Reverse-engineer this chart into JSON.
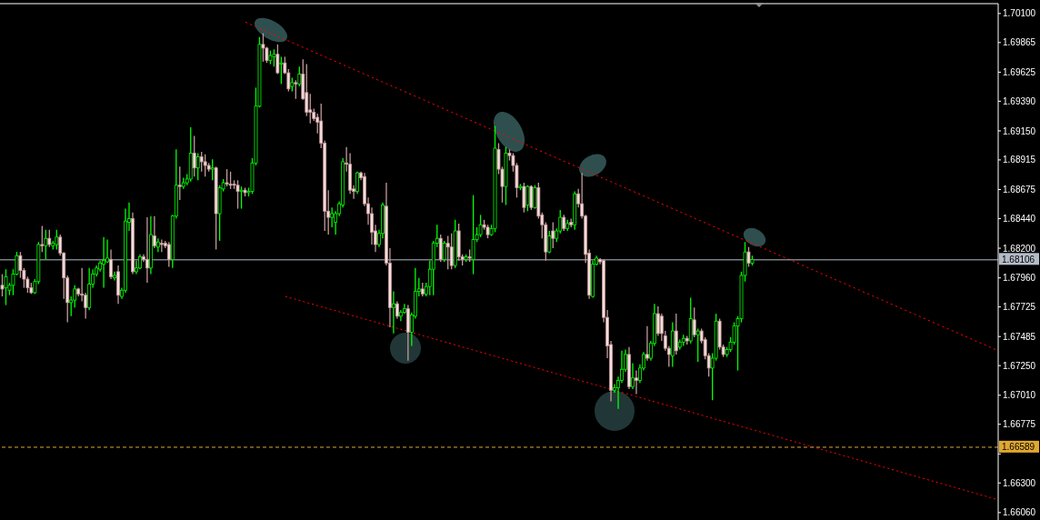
{
  "chart_data": {
    "type": "candlestick",
    "categories": [
      null,
      null,
      null,
      null,
      null,
      null,
      null,
      null,
      null,
      null,
      null,
      null,
      null,
      null,
      null,
      null,
      null,
      null,
      null,
      null,
      null,
      null,
      null,
      null,
      null,
      null,
      null,
      null,
      null,
      null,
      null,
      null,
      null,
      null,
      null,
      null,
      null,
      null,
      null,
      null,
      null,
      null,
      null,
      null,
      null,
      null,
      null,
      null,
      null,
      null,
      null,
      null,
      null,
      null,
      null,
      null,
      null,
      null,
      null,
      null,
      null,
      null,
      null,
      null,
      null,
      null,
      null,
      null,
      null,
      null,
      null,
      null,
      null,
      null,
      null,
      null,
      null,
      null,
      null,
      null,
      null,
      null,
      null,
      null,
      null,
      null,
      null,
      null,
      null,
      null,
      null,
      null,
      null,
      null,
      null,
      null,
      null,
      null,
      null,
      null,
      null,
      null,
      null,
      null,
      null,
      null,
      null,
      null,
      null,
      null,
      null,
      null,
      null,
      null,
      null,
      null,
      null,
      null,
      null,
      null,
      null,
      null,
      null,
      null,
      null,
      null,
      null,
      null,
      null,
      null,
      null,
      null,
      null,
      null,
      null,
      null,
      null,
      null,
      null,
      null,
      null,
      null,
      null,
      null,
      null,
      null,
      null,
      null,
      null,
      null,
      null,
      null,
      null,
      null,
      null,
      null,
      null,
      null,
      null,
      null,
      null,
      null,
      null,
      null,
      null,
      null,
      null,
      null,
      null,
      null,
      null,
      null,
      null,
      null,
      null,
      null,
      null,
      null,
      null,
      null,
      null,
      null,
      null,
      null,
      null,
      null,
      null,
      null,
      null,
      null,
      null,
      null,
      null,
      null,
      null,
      null,
      null,
      null,
      null,
      null,
      null,
      null,
      null,
      null,
      null,
      null,
      null,
      null,
      null,
      null,
      null,
      null,
      null,
      null,
      null,
      null,
      null,
      null,
      null,
      null,
      null,
      null,
      null,
      null,
      null,
      null,
      null,
      null,
      null,
      null,
      null,
      null,
      null,
      null,
      null,
      null,
      null,
      null,
      null,
      null,
      null,
      null,
      null,
      null,
      null,
      null,
      null,
      null,
      null,
      null,
      null,
      null,
      null,
      null,
      null,
      null,
      null,
      null,
      null,
      null,
      null,
      null,
      null,
      null,
      null,
      null,
      null,
      null,
      null,
      null,
      null,
      null,
      null,
      null,
      null
    ],
    "ohlc": [
      [
        1.679,
        1.6799,
        1.6781,
        1.6787
      ],
      [
        1.6788,
        1.6803,
        1.6774,
        1.6797
      ],
      [
        1.6786,
        1.6792,
        1.6782,
        1.679
      ],
      [
        1.679,
        1.6803,
        1.6782,
        1.6799
      ],
      [
        1.6799,
        1.6817,
        1.6798,
        1.6814
      ],
      [
        1.6814,
        1.6817,
        1.6796,
        1.6802
      ],
      [
        1.6802,
        1.6804,
        1.6788,
        1.6795
      ],
      [
        1.6795,
        1.6797,
        1.6784,
        1.6788
      ],
      [
        1.6788,
        1.6792,
        1.6783,
        1.6784
      ],
      [
        1.6784,
        1.6795,
        1.6783,
        1.6793
      ],
      [
        1.6793,
        1.6825,
        1.6791,
        1.6823
      ],
      [
        1.6823,
        1.6838,
        1.6817,
        1.6822
      ],
      [
        1.6822,
        1.6835,
        1.6811,
        1.6828
      ],
      [
        1.6828,
        1.6835,
        1.6821,
        1.6823
      ],
      [
        1.6822,
        1.6826,
        1.6819,
        1.6824
      ],
      [
        1.6823,
        1.6835,
        1.6819,
        1.6829
      ],
      [
        1.6829,
        1.6831,
        1.6814,
        1.6816
      ],
      [
        1.6816,
        1.6817,
        1.6779,
        1.6796
      ],
      [
        1.6796,
        1.6798,
        1.676,
        1.6776
      ],
      [
        1.6776,
        1.6781,
        1.6765,
        1.6778
      ],
      [
        1.6778,
        1.679,
        1.6772,
        1.6787
      ],
      [
        1.6787,
        1.6788,
        1.6781,
        1.6783
      ],
      [
        1.6783,
        1.6804,
        1.6777,
        1.6782
      ],
      [
        1.6782,
        1.6784,
        1.6763,
        1.6772
      ],
      [
        1.6772,
        1.6804,
        1.677,
        1.6791
      ],
      [
        1.6791,
        1.6803,
        1.6788,
        1.6799
      ],
      [
        1.6799,
        1.6806,
        1.6797,
        1.6804
      ],
      [
        1.6803,
        1.681,
        1.6801,
        1.6808
      ],
      [
        1.6807,
        1.6829,
        1.6788,
        1.681
      ],
      [
        1.6809,
        1.6827,
        1.6808,
        1.6812
      ],
      [
        1.6811,
        1.6819,
        1.6795,
        1.6797
      ],
      [
        1.6796,
        1.6801,
        1.6794,
        1.6798
      ],
      [
        1.6801,
        1.6806,
        1.6775,
        1.6782
      ],
      [
        1.6781,
        1.6788,
        1.6779,
        1.6786
      ],
      [
        1.6786,
        1.6852,
        1.6784,
        1.6842
      ],
      [
        1.6841,
        1.6857,
        1.6834,
        1.6844
      ],
      [
        1.6844,
        1.6849,
        1.6799,
        1.6801
      ],
      [
        1.6801,
        1.681,
        1.6799,
        1.6804
      ],
      [
        1.6804,
        1.6815,
        1.6803,
        1.6813
      ],
      [
        1.6813,
        1.6815,
        1.6809,
        1.6811
      ],
      [
        1.6811,
        1.6845,
        1.6792,
        1.6804
      ],
      [
        1.6804,
        1.6846,
        1.6799,
        1.6831
      ],
      [
        1.683,
        1.6846,
        1.682,
        1.6822
      ],
      [
        1.6821,
        1.6828,
        1.6817,
        1.6825
      ],
      [
        1.6824,
        1.6827,
        1.6817,
        1.6823
      ],
      [
        1.6824,
        1.6826,
        1.682,
        1.6822
      ],
      [
        1.6823,
        1.6825,
        1.6805,
        1.6811
      ],
      [
        1.6811,
        1.6847,
        1.6804,
        1.6846
      ],
      [
        1.6846,
        1.69,
        1.6844,
        1.6871
      ],
      [
        1.6871,
        1.6886,
        1.6859,
        1.687
      ],
      [
        1.687,
        1.6877,
        1.6868,
        1.6873
      ],
      [
        1.6873,
        1.688,
        1.6871,
        1.6876
      ],
      [
        1.6876,
        1.6918,
        1.6874,
        1.6897
      ],
      [
        1.6897,
        1.6911,
        1.6878,
        1.6885
      ],
      [
        1.6885,
        1.6897,
        1.6875,
        1.6894
      ],
      [
        1.6894,
        1.6898,
        1.6882,
        1.689
      ],
      [
        1.689,
        1.6896,
        1.6878,
        1.6887
      ],
      [
        1.6887,
        1.6889,
        1.6882,
        1.6884
      ],
      [
        1.6884,
        1.6892,
        1.6875,
        1.6885
      ],
      [
        1.6885,
        1.6886,
        1.6819,
        1.6848
      ],
      [
        1.6848,
        1.6871,
        1.6826,
        1.6869
      ],
      [
        1.6868,
        1.6876,
        1.6866,
        1.6873
      ],
      [
        1.6873,
        1.6884,
        1.687,
        1.6872
      ],
      [
        1.6872,
        1.6882,
        1.6868,
        1.6871
      ],
      [
        1.6872,
        1.6875,
        1.6868,
        1.6871
      ],
      [
        1.6871,
        1.6875,
        1.6852,
        1.6866
      ],
      [
        1.6866,
        1.687,
        1.6852,
        1.6867
      ],
      [
        1.6867,
        1.6869,
        1.6862,
        1.6865
      ],
      [
        1.6865,
        1.6869,
        1.6862,
        1.6866
      ],
      [
        1.6866,
        1.6893,
        1.6864,
        1.6889
      ],
      [
        1.6889,
        1.695,
        1.6887,
        1.6935
      ],
      [
        1.6935,
        1.6991,
        1.6934,
        1.6985
      ],
      [
        1.6985,
        1.6994,
        1.6971,
        1.6982
      ],
      [
        1.6982,
        1.6983,
        1.697,
        1.6972
      ],
      [
        1.6972,
        1.698,
        1.6969,
        1.6976
      ],
      [
        1.6975,
        1.6981,
        1.6967,
        1.6977
      ],
      [
        1.6977,
        1.6985,
        1.6961,
        1.6962
      ],
      [
        1.6969,
        1.6975,
        1.6953,
        1.697
      ],
      [
        1.697,
        1.6975,
        1.6961,
        1.6962
      ],
      [
        1.6962,
        1.6965,
        1.6947,
        1.6949
      ],
      [
        1.6951,
        1.6958,
        1.6947,
        1.6954
      ],
      [
        1.6954,
        1.6956,
        1.6941,
        1.6953
      ],
      [
        1.6953,
        1.6967,
        1.6951,
        1.6961
      ],
      [
        1.6961,
        1.6973,
        1.694,
        1.6941
      ],
      [
        1.6946,
        1.6969,
        1.6927,
        1.693
      ],
      [
        1.6932,
        1.6945,
        1.6921,
        1.693
      ],
      [
        1.693,
        1.6933,
        1.6923,
        1.6925
      ],
      [
        1.6926,
        1.6929,
        1.6913,
        1.6922
      ],
      [
        1.6923,
        1.6937,
        1.6901,
        1.6905
      ],
      [
        1.6905,
        1.6907,
        1.6834,
        1.685
      ],
      [
        1.685,
        1.6867,
        1.6831,
        1.6845
      ],
      [
        1.6845,
        1.6853,
        1.6837,
        1.6848
      ],
      [
        1.6841,
        1.685,
        1.6831,
        1.6848
      ],
      [
        1.6848,
        1.6858,
        1.6846,
        1.6856
      ],
      [
        1.6855,
        1.6893,
        1.6853,
        1.689
      ],
      [
        1.6889,
        1.6902,
        1.6882,
        1.6888
      ],
      [
        1.6888,
        1.6897,
        1.6864,
        1.6867
      ],
      [
        1.6868,
        1.6871,
        1.686,
        1.6866
      ],
      [
        1.6866,
        1.6882,
        1.6864,
        1.6881
      ],
      [
        1.6881,
        1.6882,
        1.6875,
        1.6877
      ],
      [
        1.6878,
        1.6881,
        1.6854,
        1.6856
      ],
      [
        1.6856,
        1.6861,
        1.6839,
        1.6848
      ],
      [
        1.6848,
        1.6853,
        1.6823,
        1.6833
      ],
      [
        1.6834,
        1.6839,
        1.6817,
        1.6823
      ],
      [
        1.6823,
        1.6835,
        1.6821,
        1.6832
      ],
      [
        1.6832,
        1.6857,
        1.6828,
        1.6855
      ],
      [
        1.6854,
        1.6873,
        1.6806,
        1.6808
      ],
      [
        1.6808,
        1.682,
        1.6756,
        1.6772
      ],
      [
        1.6772,
        1.6785,
        1.6751,
        1.6775
      ],
      [
        1.6775,
        1.6777,
        1.6763,
        1.6765
      ],
      [
        1.6765,
        1.677,
        1.6761,
        1.6768
      ],
      [
        1.6768,
        1.6775,
        1.6767,
        1.6771
      ],
      [
        1.6771,
        1.6774,
        1.6729,
        1.6752
      ],
      [
        1.6752,
        1.6768,
        1.6741,
        1.6766
      ],
      [
        1.6765,
        1.6804,
        1.6763,
        1.6785
      ],
      [
        1.6785,
        1.6796,
        1.6781,
        1.6787
      ],
      [
        1.6787,
        1.6792,
        1.6781,
        1.6783
      ],
      [
        1.6783,
        1.6792,
        1.6781,
        1.6789
      ],
      [
        1.6789,
        1.681,
        1.6782,
        1.6803
      ],
      [
        1.6803,
        1.6826,
        1.6782,
        1.6824
      ],
      [
        1.6824,
        1.6839,
        1.6821,
        1.6828
      ],
      [
        1.6828,
        1.6831,
        1.6809,
        1.6811
      ],
      [
        1.6811,
        1.6826,
        1.6809,
        1.6824
      ],
      [
        1.6824,
        1.683,
        1.6803,
        1.6821
      ],
      [
        1.6821,
        1.6832,
        1.6803,
        1.6806
      ],
      [
        1.6806,
        1.6843,
        1.6804,
        1.6834
      ],
      [
        1.6834,
        1.684,
        1.681,
        1.6813
      ],
      [
        1.6813,
        1.6815,
        1.6806,
        1.6811
      ],
      [
        1.6811,
        1.6815,
        1.6809,
        1.6813
      ],
      [
        1.6813,
        1.6819,
        1.6809,
        1.6812
      ],
      [
        1.6811,
        1.6863,
        1.6799,
        1.6827
      ],
      [
        1.6827,
        1.6837,
        1.6825,
        1.6831
      ],
      [
        1.6831,
        1.6847,
        1.6829,
        1.6839
      ],
      [
        1.6839,
        1.6843,
        1.6835,
        1.6837
      ],
      [
        1.6837,
        1.6839,
        1.6828,
        1.6831
      ],
      [
        1.6831,
        1.6839,
        1.683,
        1.6836
      ],
      [
        1.6836,
        1.6919,
        1.6833,
        1.6901
      ],
      [
        1.69,
        1.6905,
        1.688,
        1.6884
      ],
      [
        1.6884,
        1.6886,
        1.6857,
        1.687
      ],
      [
        1.687,
        1.6902,
        1.6855,
        1.6897
      ],
      [
        1.6897,
        1.69,
        1.6891,
        1.6895
      ],
      [
        1.6895,
        1.6897,
        1.6882,
        1.6887
      ],
      [
        1.6887,
        1.6889,
        1.6861,
        1.6869
      ],
      [
        1.6869,
        1.6872,
        1.6867,
        1.687
      ],
      [
        1.687,
        1.6873,
        1.6849,
        1.6853
      ],
      [
        1.6855,
        1.6871,
        1.685,
        1.687
      ],
      [
        1.687,
        1.6871,
        1.6851,
        1.6853
      ],
      [
        1.6853,
        1.6871,
        1.6852,
        1.6869
      ],
      [
        1.6869,
        1.6873,
        1.6844,
        1.6846
      ],
      [
        1.6847,
        1.6849,
        1.6828,
        1.6839
      ],
      [
        1.6839,
        1.6841,
        1.681,
        1.6817
      ],
      [
        1.6817,
        1.6834,
        1.6816,
        1.683
      ],
      [
        1.6834,
        1.6841,
        1.682,
        1.6828
      ],
      [
        1.6828,
        1.6836,
        1.6825,
        1.6834
      ],
      [
        1.6834,
        1.6851,
        1.6832,
        1.6845
      ],
      [
        1.6845,
        1.6847,
        1.6834,
        1.6836
      ],
      [
        1.6836,
        1.6843,
        1.6834,
        1.684
      ],
      [
        1.6841,
        1.6844,
        1.6837,
        1.6839
      ],
      [
        1.6839,
        1.6866,
        1.6835,
        1.6864
      ],
      [
        1.6864,
        1.6868,
        1.6853,
        1.6856
      ],
      [
        1.6856,
        1.6881,
        1.6844,
        1.6846
      ],
      [
        1.6846,
        1.6847,
        1.6808,
        1.6815
      ],
      [
        1.6816,
        1.6819,
        1.6779,
        1.6782
      ],
      [
        1.6781,
        1.681,
        1.678,
        1.6807
      ],
      [
        1.6807,
        1.6814,
        1.6806,
        1.6812
      ],
      [
        1.6811,
        1.6812,
        1.6807,
        1.6809
      ],
      [
        1.681,
        1.6811,
        1.676,
        1.6764
      ],
      [
        1.6764,
        1.677,
        1.6731,
        1.6741
      ],
      [
        1.6742,
        1.6745,
        1.6696,
        1.6705
      ],
      [
        1.6705,
        1.671,
        1.6703,
        1.6707
      ],
      [
        1.6707,
        1.6716,
        1.669,
        1.6713
      ],
      [
        1.6713,
        1.6737,
        1.6711,
        1.6722
      ],
      [
        1.6722,
        1.6738,
        1.672,
        1.6734
      ],
      [
        1.6734,
        1.674,
        1.6706,
        1.6708
      ],
      [
        1.6708,
        1.6727,
        1.6706,
        1.6715
      ],
      [
        1.6715,
        1.6721,
        1.6702,
        1.6713
      ],
      [
        1.6713,
        1.6726,
        1.6711,
        1.6723
      ],
      [
        1.6723,
        1.6736,
        1.6721,
        1.6734
      ],
      [
        1.6734,
        1.6757,
        1.6729,
        1.6731
      ],
      [
        1.6731,
        1.6745,
        1.6729,
        1.6743
      ],
      [
        1.6743,
        1.6775,
        1.6741,
        1.6767
      ],
      [
        1.6767,
        1.6773,
        1.6749,
        1.6751
      ],
      [
        1.6765,
        1.6767,
        1.6745,
        1.6751
      ],
      [
        1.6749,
        1.6753,
        1.6737,
        1.6739
      ],
      [
        1.6739,
        1.6741,
        1.6724,
        1.6734
      ],
      [
        1.6733,
        1.676,
        1.6724,
        1.6753
      ],
      [
        1.6753,
        1.6767,
        1.6734,
        1.6737
      ],
      [
        1.674,
        1.6746,
        1.6738,
        1.6744
      ],
      [
        1.6744,
        1.675,
        1.6741,
        1.6747
      ],
      [
        1.6747,
        1.6749,
        1.6742,
        1.6745
      ],
      [
        1.6745,
        1.678,
        1.6743,
        1.6763
      ],
      [
        1.6762,
        1.6772,
        1.6748,
        1.675
      ],
      [
        1.675,
        1.6755,
        1.6728,
        1.6753
      ],
      [
        1.6753,
        1.6755,
        1.6743,
        1.6745
      ],
      [
        1.6746,
        1.6748,
        1.673,
        1.6733
      ],
      [
        1.6733,
        1.6735,
        1.6716,
        1.6723
      ],
      [
        1.6723,
        1.6735,
        1.6697,
        1.6731
      ],
      [
        1.6731,
        1.6767,
        1.6729,
        1.6761
      ],
      [
        1.6761,
        1.6763,
        1.6738,
        1.674
      ],
      [
        1.674,
        1.6742,
        1.6732,
        1.6734
      ],
      [
        1.6734,
        1.674,
        1.6732,
        1.6738
      ],
      [
        1.6738,
        1.6748,
        1.6736,
        1.6744
      ],
      [
        1.6744,
        1.676,
        1.6742,
        1.6757
      ],
      [
        1.6757,
        1.6765,
        1.6721,
        1.6763
      ],
      [
        1.6763,
        1.6801,
        1.676,
        1.6798
      ],
      [
        1.6798,
        1.6825,
        1.6793,
        1.6817
      ],
      [
        1.6817,
        1.6821,
        1.6805,
        1.6808
      ],
      [
        1.6808,
        1.6814,
        1.6806,
        1.6811
      ],
      null,
      null,
      null,
      null,
      null,
      null,
      null,
      null,
      null,
      null,
      null,
      null,
      null,
      null,
      null,
      null,
      null,
      null,
      null,
      null,
      null,
      null,
      null,
      null,
      null,
      null,
      null,
      null,
      null,
      null,
      null,
      null,
      null,
      null,
      null,
      null,
      null,
      null,
      null,
      null,
      null,
      null,
      null,
      null,
      null,
      null,
      null,
      null,
      null,
      null,
      null,
      null,
      null,
      null,
      null,
      null,
      null,
      null,
      null,
      null,
      null,
      null,
      null,
      null,
      null,
      null,
      null
    ],
    "series": [
      {
        "type": "line",
        "color": "#ff0000",
        "line_style": "dotted",
        "values": [
          null,
          null,
          null,
          null,
          null,
          null,
          null,
          null,
          null,
          null,
          null,
          null,
          null,
          null,
          null,
          null,
          null,
          null,
          null,
          null,
          null,
          null,
          null,
          null,
          null,
          null,
          null,
          null,
          null,
          null,
          null,
          null,
          null,
          null,
          null,
          null,
          null,
          null,
          null,
          null,
          null,
          null,
          null,
          null,
          null,
          null,
          null,
          null,
          null,
          null,
          null,
          null,
          null,
          null,
          null,
          null,
          null,
          null,
          null,
          null,
          null,
          null,
          null,
          null,
          null,
          null,
          null,
          1.7003,
          null,
          null,
          null,
          null,
          null,
          null,
          null,
          null,
          null,
          null,
          null,
          null,
          null,
          null,
          null,
          null,
          null,
          null,
          null,
          null,
          null,
          null,
          null,
          null,
          null,
          null,
          null,
          null,
          null,
          null,
          null,
          null,
          null,
          null,
          null,
          null,
          null,
          null,
          null,
          null,
          null,
          null,
          null,
          null,
          null,
          null,
          null,
          null,
          null,
          null,
          null,
          null,
          null,
          null,
          null,
          null,
          null,
          null,
          null,
          null,
          null,
          null,
          null,
          null,
          null,
          null,
          null,
          null,
          null,
          null,
          null,
          null,
          null,
          null,
          null,
          null,
          null,
          null,
          null,
          null,
          null,
          null,
          null,
          null,
          null,
          null,
          null,
          null,
          null,
          null,
          null,
          null,
          null,
          null,
          null,
          null,
          null,
          null,
          null,
          null,
          null,
          null,
          null,
          null,
          null,
          null,
          null,
          null,
          null,
          null,
          null,
          null,
          null,
          null,
          null,
          null,
          null,
          null,
          null,
          null,
          null,
          null,
          null,
          null,
          null,
          null,
          null,
          null,
          null,
          null,
          null,
          null,
          null,
          null,
          null,
          null,
          null,
          null,
          null,
          null,
          null,
          null,
          null,
          null,
          null,
          null,
          null,
          null,
          null,
          null,
          null,
          null,
          null,
          null,
          null,
          null,
          null,
          null,
          null,
          null,
          null,
          null,
          null,
          null,
          null,
          null,
          null,
          null,
          null,
          null,
          null,
          null,
          null,
          null,
          null,
          null,
          null,
          null,
          null,
          null,
          null,
          null,
          null,
          null,
          null,
          null,
          null,
          null,
          null,
          null,
          null,
          null,
          null,
          null,
          null,
          null,
          null,
          null,
          null,
          null,
          null,
          null,
          null,
          null,
          null,
          null,
          1.6738
        ]
      },
      {
        "type": "line",
        "color": "#ff0000",
        "line_style": "dotted",
        "values": [
          null,
          null,
          null,
          null,
          null,
          null,
          null,
          null,
          null,
          null,
          null,
          null,
          null,
          null,
          null,
          null,
          null,
          null,
          null,
          null,
          null,
          null,
          null,
          null,
          null,
          null,
          null,
          null,
          null,
          null,
          null,
          null,
          null,
          null,
          null,
          null,
          null,
          null,
          null,
          null,
          null,
          null,
          null,
          null,
          null,
          null,
          null,
          null,
          null,
          null,
          null,
          null,
          null,
          null,
          null,
          null,
          null,
          null,
          null,
          null,
          null,
          null,
          null,
          null,
          null,
          null,
          null,
          null,
          null,
          null,
          null,
          null,
          null,
          null,
          null,
          null,
          null,
          null,
          1.6781,
          null,
          null,
          null,
          null,
          null,
          null,
          null,
          null,
          null,
          null,
          null,
          null,
          null,
          null,
          null,
          null,
          null,
          null,
          null,
          null,
          null,
          null,
          null,
          null,
          null,
          null,
          null,
          null,
          null,
          null,
          null,
          null,
          null,
          null,
          null,
          null,
          null,
          null,
          null,
          null,
          null,
          null,
          null,
          null,
          null,
          null,
          null,
          null,
          null,
          null,
          null,
          null,
          null,
          null,
          null,
          null,
          null,
          null,
          null,
          null,
          null,
          null,
          null,
          null,
          null,
          null,
          null,
          null,
          null,
          null,
          null,
          null,
          null,
          null,
          null,
          null,
          null,
          null,
          null,
          null,
          null,
          null,
          null,
          null,
          null,
          null,
          null,
          null,
          null,
          null,
          null,
          null,
          null,
          null,
          null,
          null,
          null,
          null,
          null,
          null,
          null,
          null,
          null,
          null,
          null,
          null,
          null,
          null,
          null,
          null,
          null,
          null,
          null,
          null,
          null,
          null,
          null,
          null,
          null,
          null,
          null,
          null,
          null,
          null,
          null,
          null,
          null,
          null,
          null,
          null,
          null,
          null,
          null,
          null,
          null,
          null,
          null,
          null,
          null,
          null,
          null,
          null,
          null,
          null,
          null,
          null,
          null,
          null,
          null,
          null,
          null,
          null,
          null,
          null,
          null,
          null,
          null,
          null,
          null,
          null,
          null,
          null,
          null,
          null,
          null,
          null,
          null,
          null,
          null,
          null,
          null,
          null,
          null,
          null,
          null,
          null,
          null,
          null,
          null,
          null,
          null,
          null,
          null,
          null,
          null,
          null,
          null,
          null,
          null,
          null,
          null,
          null,
          null,
          null,
          null,
          1.6617
        ]
      }
    ],
    "ylim": [
      1.66,
      1.7018
    ],
    "yticks": [
      {
        "value": 1.701,
        "label": "1.70100"
      },
      {
        "value": 1.69865,
        "label": "1.69865"
      },
      {
        "value": 1.69625,
        "label": "1.69625"
      },
      {
        "value": 1.6939,
        "label": "1.69390"
      },
      {
        "value": 1.6915,
        "label": "1.69150"
      },
      {
        "value": 1.68915,
        "label": "1.68915"
      },
      {
        "value": 1.68675,
        "label": "1.68675"
      },
      {
        "value": 1.6844,
        "label": "1.68440"
      },
      {
        "value": 1.682,
        "label": "1.68200"
      },
      {
        "value": 1.6796,
        "label": "1.67960"
      },
      {
        "value": 1.67725,
        "label": "1.67725"
      },
      {
        "value": 1.67485,
        "label": "1.67485"
      },
      {
        "value": 1.6725,
        "label": "1.67250"
      },
      {
        "value": 1.6701,
        "label": "1.67010"
      },
      {
        "value": 1.66775,
        "label": "1.66775"
      },
      {
        "value": 1.66535,
        "label": null
      },
      {
        "value": 1.663,
        "label": "1.66300"
      },
      {
        "value": 1.6606,
        "label": "1.66060"
      }
    ],
    "ref_lines": [
      {
        "axis": "y",
        "value": 1.68106,
        "label": "1.68106",
        "color": "#b4bcc8",
        "line_style": "solid"
      },
      {
        "axis": "y",
        "value": 1.66589,
        "label": "1.66589",
        "color": "#e0a830",
        "line_style": "dashed"
      }
    ],
    "tick_labels": "y"
  }
}
